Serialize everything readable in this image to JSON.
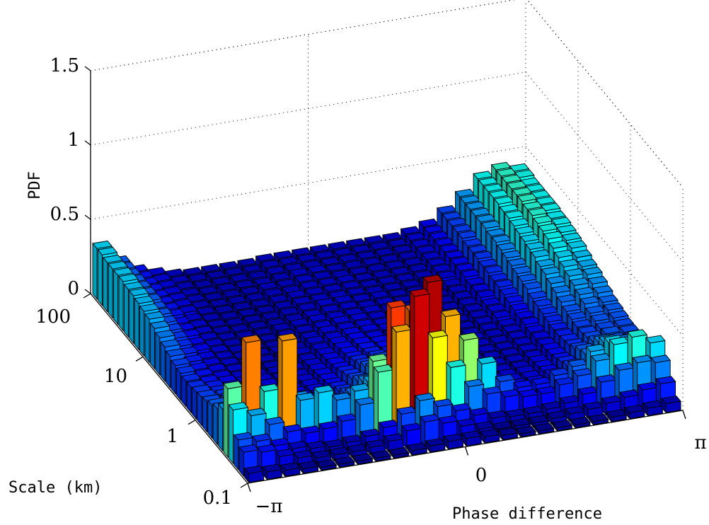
{
  "chart_data": {
    "type": "bar3d",
    "xlabel": "Phase difference",
    "ylabel": "Scale (km)",
    "zlabel": "PDF",
    "x_ticks": [
      "−π",
      "0",
      "π"
    ],
    "y_ticks": [
      "0.1",
      "1",
      "10",
      "100"
    ],
    "z_ticks": [
      "0",
      "0.5",
      "1",
      "1.5"
    ],
    "zlim": [
      0,
      1.5
    ],
    "xlim": [
      -3.14159,
      3.14159
    ],
    "scale_range_km": [
      0.1,
      100
    ],
    "n_phase_bins": 24,
    "n_scale_bins": 30,
    "colormap": "jet",
    "pdf": [
      [
        0.06,
        0.05,
        0.04,
        0.03,
        0.02,
        0.02,
        0.02,
        0.02,
        0.02,
        0.03,
        0.04,
        0.05,
        0.05,
        0.04,
        0.03,
        0.02,
        0.02,
        0.02,
        0.02,
        0.02,
        0.03,
        0.04,
        0.05,
        0.06
      ],
      [
        0.16,
        0.14,
        0.09,
        0.06,
        0.04,
        0.04,
        0.04,
        0.05,
        0.07,
        0.12,
        0.16,
        0.13,
        0.09,
        0.05,
        0.03,
        0.03,
        0.03,
        0.04,
        0.05,
        0.06,
        0.08,
        0.1,
        0.13,
        0.15
      ],
      [
        0.2,
        0.17,
        0.12,
        0.08,
        0.06,
        0.05,
        0.06,
        0.08,
        0.12,
        0.19,
        0.26,
        0.2,
        0.15,
        0.1,
        0.06,
        0.05,
        0.05,
        0.06,
        0.08,
        0.12,
        0.18,
        0.24,
        0.27,
        0.25
      ],
      [
        0.36,
        0.3,
        0.22,
        0.15,
        0.12,
        0.13,
        0.16,
        0.25,
        0.45,
        0.7,
        0.92,
        0.62,
        0.4,
        0.25,
        0.18,
        0.14,
        0.12,
        0.12,
        0.16,
        0.2,
        0.28,
        0.37,
        0.4,
        0.34
      ],
      [
        0.46,
        0.75,
        0.4,
        0.72,
        0.3,
        0.33,
        0.26,
        0.3,
        0.48,
        0.82,
        0.78,
        0.95,
        0.7,
        0.52,
        0.34,
        0.2,
        0.14,
        0.14,
        0.18,
        0.22,
        0.3,
        0.34,
        0.32,
        0.28
      ],
      [
        0.28,
        0.34,
        0.3,
        0.34,
        0.27,
        0.22,
        0.2,
        0.24,
        0.3,
        0.35,
        0.66,
        0.38,
        0.44,
        0.25,
        0.18,
        0.14,
        0.11,
        0.11,
        0.14,
        0.18,
        0.24,
        0.3,
        0.26,
        0.24
      ],
      [
        0.24,
        0.26,
        0.28,
        0.26,
        0.22,
        0.18,
        0.17,
        0.2,
        0.26,
        0.34,
        0.38,
        0.33,
        0.28,
        0.22,
        0.16,
        0.12,
        0.1,
        0.1,
        0.12,
        0.16,
        0.22,
        0.26,
        0.24,
        0.22
      ],
      [
        0.22,
        0.24,
        0.22,
        0.2,
        0.18,
        0.15,
        0.14,
        0.17,
        0.22,
        0.28,
        0.3,
        0.28,
        0.24,
        0.19,
        0.14,
        0.11,
        0.09,
        0.09,
        0.11,
        0.14,
        0.19,
        0.22,
        0.21,
        0.2
      ],
      [
        0.2,
        0.2,
        0.19,
        0.17,
        0.15,
        0.13,
        0.12,
        0.15,
        0.19,
        0.24,
        0.26,
        0.24,
        0.21,
        0.17,
        0.13,
        0.1,
        0.08,
        0.08,
        0.1,
        0.13,
        0.17,
        0.2,
        0.21,
        0.2
      ],
      [
        0.19,
        0.18,
        0.16,
        0.15,
        0.13,
        0.11,
        0.11,
        0.13,
        0.17,
        0.21,
        0.23,
        0.21,
        0.18,
        0.15,
        0.12,
        0.09,
        0.08,
        0.08,
        0.09,
        0.12,
        0.16,
        0.19,
        0.2,
        0.2
      ],
      [
        0.18,
        0.16,
        0.14,
        0.13,
        0.11,
        0.1,
        0.1,
        0.12,
        0.15,
        0.18,
        0.2,
        0.18,
        0.16,
        0.13,
        0.11,
        0.09,
        0.08,
        0.08,
        0.09,
        0.11,
        0.15,
        0.19,
        0.21,
        0.21
      ],
      [
        0.17,
        0.15,
        0.13,
        0.11,
        0.1,
        0.09,
        0.09,
        0.11,
        0.13,
        0.16,
        0.17,
        0.16,
        0.14,
        0.12,
        0.1,
        0.09,
        0.08,
        0.08,
        0.09,
        0.11,
        0.15,
        0.2,
        0.22,
        0.22
      ],
      [
        0.17,
        0.14,
        0.12,
        0.1,
        0.09,
        0.08,
        0.08,
        0.1,
        0.12,
        0.14,
        0.15,
        0.14,
        0.13,
        0.11,
        0.1,
        0.09,
        0.08,
        0.08,
        0.09,
        0.11,
        0.16,
        0.21,
        0.24,
        0.23
      ],
      [
        0.18,
        0.14,
        0.11,
        0.09,
        0.08,
        0.08,
        0.08,
        0.09,
        0.11,
        0.13,
        0.14,
        0.13,
        0.12,
        0.1,
        0.09,
        0.08,
        0.08,
        0.08,
        0.09,
        0.12,
        0.17,
        0.23,
        0.26,
        0.25
      ],
      [
        0.19,
        0.14,
        0.11,
        0.09,
        0.08,
        0.07,
        0.07,
        0.08,
        0.1,
        0.12,
        0.13,
        0.12,
        0.11,
        0.1,
        0.09,
        0.08,
        0.07,
        0.08,
        0.09,
        0.12,
        0.18,
        0.25,
        0.28,
        0.27
      ],
      [
        0.21,
        0.15,
        0.11,
        0.09,
        0.07,
        0.07,
        0.07,
        0.08,
        0.09,
        0.11,
        0.12,
        0.11,
        0.1,
        0.09,
        0.08,
        0.08,
        0.07,
        0.08,
        0.1,
        0.13,
        0.19,
        0.27,
        0.3,
        0.29
      ],
      [
        0.23,
        0.16,
        0.11,
        0.09,
        0.07,
        0.07,
        0.07,
        0.07,
        0.09,
        0.1,
        0.11,
        0.11,
        0.1,
        0.09,
        0.08,
        0.07,
        0.07,
        0.08,
        0.1,
        0.14,
        0.21,
        0.29,
        0.32,
        0.3
      ],
      [
        0.25,
        0.17,
        0.12,
        0.09,
        0.07,
        0.07,
        0.06,
        0.07,
        0.08,
        0.1,
        0.1,
        0.1,
        0.09,
        0.09,
        0.08,
        0.07,
        0.07,
        0.08,
        0.1,
        0.15,
        0.22,
        0.3,
        0.34,
        0.32
      ],
      [
        0.27,
        0.18,
        0.12,
        0.09,
        0.07,
        0.06,
        0.06,
        0.07,
        0.08,
        0.09,
        0.1,
        0.1,
        0.09,
        0.08,
        0.08,
        0.07,
        0.07,
        0.08,
        0.11,
        0.16,
        0.23,
        0.32,
        0.36,
        0.34
      ],
      [
        0.29,
        0.19,
        0.13,
        0.09,
        0.07,
        0.06,
        0.06,
        0.07,
        0.08,
        0.09,
        0.09,
        0.09,
        0.09,
        0.08,
        0.07,
        0.07,
        0.07,
        0.08,
        0.11,
        0.16,
        0.24,
        0.33,
        0.38,
        0.35
      ],
      [
        0.3,
        0.2,
        0.13,
        0.09,
        0.07,
        0.06,
        0.06,
        0.06,
        0.07,
        0.08,
        0.09,
        0.09,
        0.08,
        0.08,
        0.07,
        0.07,
        0.07,
        0.08,
        0.11,
        0.17,
        0.25,
        0.34,
        0.39,
        0.36
      ],
      [
        0.31,
        0.21,
        0.13,
        0.09,
        0.07,
        0.06,
        0.06,
        0.06,
        0.07,
        0.08,
        0.09,
        0.09,
        0.08,
        0.08,
        0.07,
        0.07,
        0.07,
        0.08,
        0.12,
        0.17,
        0.26,
        0.35,
        0.4,
        0.37
      ],
      [
        0.32,
        0.21,
        0.14,
        0.09,
        0.07,
        0.06,
        0.06,
        0.06,
        0.07,
        0.08,
        0.08,
        0.08,
        0.08,
        0.07,
        0.07,
        0.07,
        0.07,
        0.09,
        0.12,
        0.18,
        0.27,
        0.36,
        0.41,
        0.37
      ],
      [
        0.32,
        0.22,
        0.14,
        0.1,
        0.07,
        0.06,
        0.06,
        0.06,
        0.07,
        0.08,
        0.08,
        0.08,
        0.08,
        0.07,
        0.07,
        0.07,
        0.07,
        0.09,
        0.12,
        0.18,
        0.27,
        0.37,
        0.41,
        0.38
      ],
      [
        0.33,
        0.22,
        0.14,
        0.1,
        0.07,
        0.06,
        0.06,
        0.06,
        0.07,
        0.07,
        0.08,
        0.08,
        0.08,
        0.07,
        0.07,
        0.07,
        0.07,
        0.09,
        0.12,
        0.18,
        0.28,
        0.37,
        0.42,
        0.38
      ],
      [
        0.33,
        0.22,
        0.14,
        0.1,
        0.07,
        0.06,
        0.06,
        0.06,
        0.07,
        0.07,
        0.08,
        0.08,
        0.07,
        0.07,
        0.07,
        0.07,
        0.07,
        0.09,
        0.12,
        0.19,
        0.28,
        0.38,
        0.42,
        0.38
      ],
      [
        0.33,
        0.22,
        0.14,
        0.1,
        0.07,
        0.06,
        0.06,
        0.06,
        0.06,
        0.07,
        0.08,
        0.08,
        0.07,
        0.07,
        0.07,
        0.07,
        0.07,
        0.09,
        0.12,
        0.19,
        0.28,
        0.38,
        0.42,
        0.38
      ],
      [
        0.33,
        0.22,
        0.14,
        0.1,
        0.07,
        0.06,
        0.06,
        0.06,
        0.06,
        0.07,
        0.07,
        0.07,
        0.07,
        0.07,
        0.07,
        0.07,
        0.07,
        0.09,
        0.12,
        0.19,
        0.28,
        0.38,
        0.42,
        0.38
      ],
      [
        0.34,
        0.22,
        0.14,
        0.1,
        0.07,
        0.06,
        0.06,
        0.06,
        0.06,
        0.07,
        0.07,
        0.07,
        0.07,
        0.07,
        0.07,
        0.07,
        0.07,
        0.09,
        0.12,
        0.19,
        0.28,
        0.38,
        0.42,
        0.39
      ],
      [
        0.34,
        0.22,
        0.14,
        0.1,
        0.07,
        0.06,
        0.06,
        0.06,
        0.06,
        0.07,
        0.07,
        0.07,
        0.07,
        0.07,
        0.07,
        0.07,
        0.07,
        0.09,
        0.12,
        0.19,
        0.28,
        0.38,
        0.42,
        0.39
      ]
    ]
  }
}
